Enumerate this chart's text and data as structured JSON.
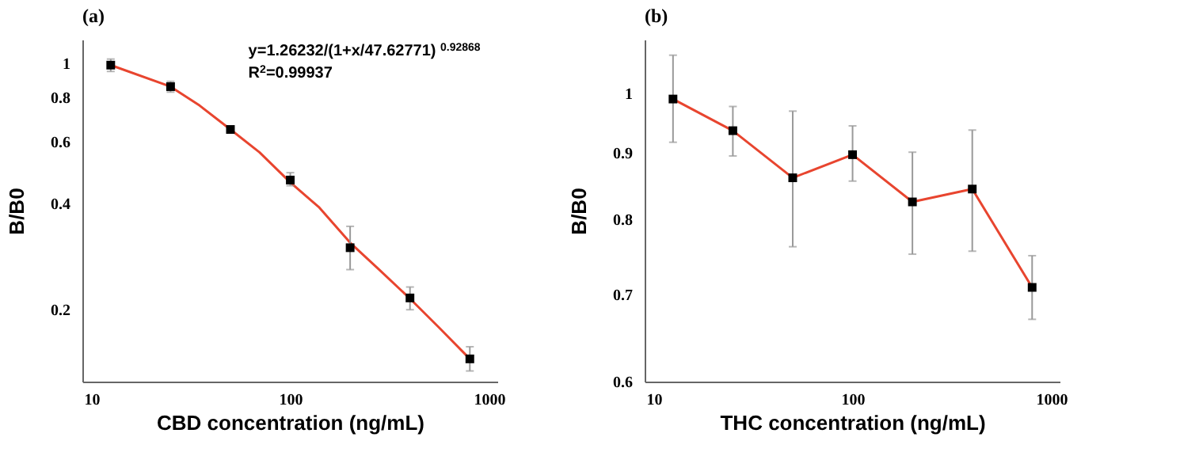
{
  "chart_data": [
    {
      "type": "scatter",
      "title": "(a)",
      "xlabel": "CBD concentration (ng/mL)",
      "ylabel": "B/B0",
      "log": "xy",
      "grid": false,
      "legend": false,
      "xlim": [
        9,
        1100
      ],
      "xticks": [
        10,
        100,
        1000
      ],
      "ylim": [
        0.125,
        1.17
      ],
      "yticks": [
        0.2,
        0.4,
        0.6,
        0.8,
        1
      ],
      "annotations": [
        "y=1.26232/(1+x/47.62771) $^{0.92868}$",
        "R$^{2}$=0.99937"
      ],
      "series": [
        {
          "type": "line",
          "color": "#e8452f",
          "marker": "none",
          "x": [
            12.5,
            25,
            35,
            50,
            70,
            100,
            140,
            200,
            280,
            400,
            560,
            800
          ],
          "values": [
            0.99,
            0.86,
            0.76,
            0.65,
            0.56,
            0.46,
            0.39,
            0.31,
            0.26,
            0.215,
            0.178,
            0.145
          ]
        },
        {
          "type": "scatter",
          "color": "#000000",
          "marker": "square",
          "x": [
            12.5,
            25,
            50,
            100,
            200,
            400,
            800
          ],
          "values": [
            0.99,
            0.86,
            0.65,
            0.467,
            0.3,
            0.216,
            0.145
          ],
          "errors": [
            [
              0.95,
              1.03
            ],
            [
              0.83,
              0.89
            ],
            [
              0.64,
              0.66
            ],
            [
              0.45,
              0.49
            ],
            [
              0.26,
              0.345
            ],
            [
              0.2,
              0.232
            ],
            [
              0.134,
              0.157
            ]
          ]
        }
      ]
    },
    {
      "type": "scatter",
      "title": "(b)",
      "xlabel": "THC concentration (ng/mL)",
      "ylabel": "B/B0",
      "log": "xy",
      "grid": false,
      "legend": false,
      "xlim": [
        9,
        1100
      ],
      "xticks": [
        10,
        100,
        1000
      ],
      "ylim": [
        0.6,
        1.1
      ],
      "yticks": [
        0.6,
        0.7,
        0.8,
        0.9,
        1
      ],
      "series": [
        {
          "type": "line",
          "color": "#e8452f",
          "marker": "none",
          "x": [
            12.5,
            25,
            50,
            100,
            200,
            400,
            800
          ],
          "values": [
            0.99,
            0.936,
            0.861,
            0.897,
            0.825,
            0.844,
            0.709
          ]
        },
        {
          "type": "scatter",
          "color": "#000000",
          "marker": "square",
          "x": [
            12.5,
            25,
            50,
            100,
            200,
            400,
            800
          ],
          "values": [
            0.99,
            0.936,
            0.861,
            0.897,
            0.825,
            0.844,
            0.709
          ],
          "errors": [
            [
              0.917,
              1.07
            ],
            [
              0.895,
              0.977
            ],
            [
              0.762,
              0.969
            ],
            [
              0.856,
              0.944
            ],
            [
              0.752,
              0.901
            ],
            [
              0.756,
              0.937
            ],
            [
              0.67,
              0.75
            ]
          ]
        }
      ]
    }
  ]
}
